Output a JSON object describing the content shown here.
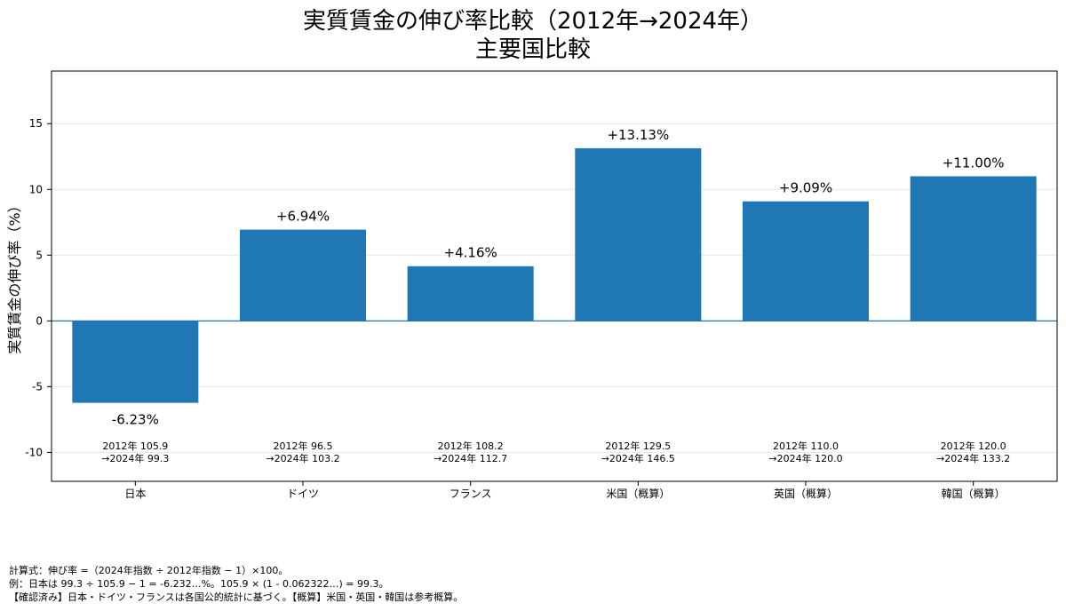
{
  "chart_data": {
    "type": "bar",
    "title": "実質賃金の伸び率比較（2012年→2024年）",
    "subtitle": "主要国比較",
    "ylabel": "実質賃金の伸び率（%）",
    "xlabel": "",
    "ylim": [
      -12.2,
      19
    ],
    "yticks": [
      -10,
      -5,
      0,
      5,
      10,
      15
    ],
    "grid": "horizontal",
    "categories": [
      "日本",
      "ドイツ",
      "フランス",
      "米国（概算）",
      "英国（概算）",
      "韓国（概算）"
    ],
    "values": [
      -6.23,
      6.94,
      4.16,
      13.13,
      9.09,
      11.0
    ],
    "value_labels": [
      "-6.23%",
      "+6.94%",
      "+4.16%",
      "+13.13%",
      "+9.09%",
      "+11.00%"
    ],
    "index_line1": [
      "2012年 105.9",
      "2012年 96.5",
      "2012年 108.2",
      "2012年 129.5",
      "2012年 110.0",
      "2012年 120.0"
    ],
    "index_line2": [
      "→2024年 99.3",
      "→2024年 103.2",
      "→2024年 112.7",
      "→2024年 146.5",
      "→2024年 120.0",
      "→2024年 133.2"
    ],
    "colors": {
      "bar": "#1f77b4",
      "zero_line": "#1f77b4",
      "grid": "#e6e6e6",
      "frame": "#000000"
    }
  },
  "footnotes": {
    "line1": "計算式：伸び率 =（2024年指数 ÷ 2012年指数 − 1）×100。",
    "line2": "例：日本は 99.3 ÷ 105.9 − 1 = -6.232…%。105.9 × (1 - 0.062322…) = 99.3。",
    "line3": "【確認済み】日本・ドイツ・フランスは各国公的統計に基づく。【概算】米国・英国・韓国は参考概算。"
  }
}
